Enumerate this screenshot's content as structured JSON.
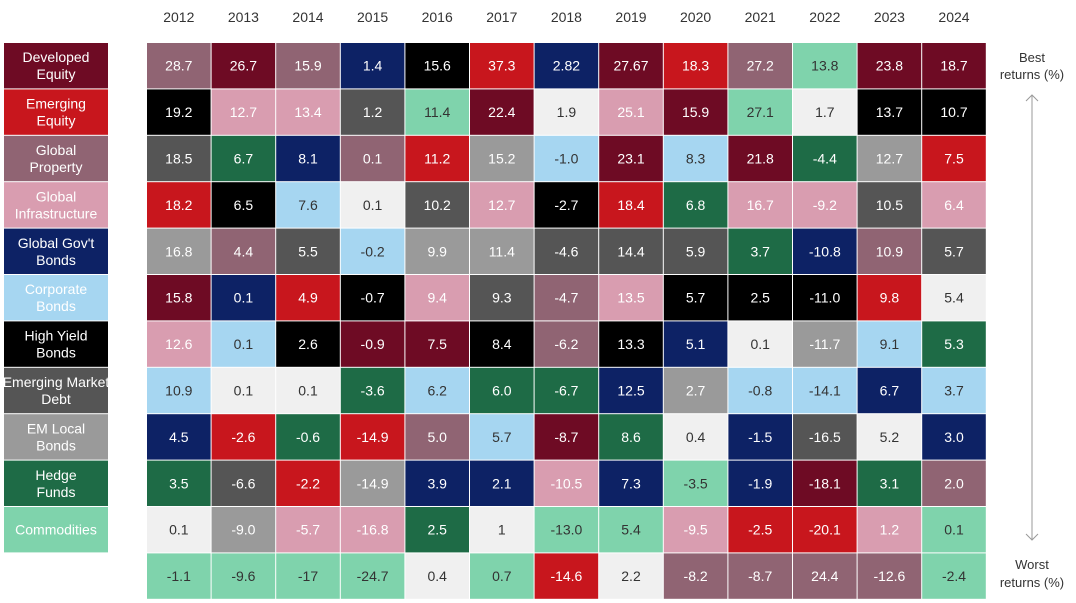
{
  "chart_data": {
    "type": "table",
    "title": "",
    "years": [
      "2012",
      "2013",
      "2014",
      "2015",
      "2016",
      "2017",
      "2018",
      "2019",
      "2020",
      "2021",
      "2022",
      "2023",
      "2024"
    ],
    "asset_classes": [
      {
        "key": "DE",
        "label": "Developed Equity",
        "color": "#6e0b24",
        "text_color": "#ffffff"
      },
      {
        "key": "EE",
        "label": "Emerging Equity",
        "color": "#c8161d",
        "text_color": "#ffffff"
      },
      {
        "key": "GP",
        "label": "Global Property",
        "color": "#906473",
        "text_color": "#ffffff"
      },
      {
        "key": "GI",
        "label": "Global Infrastructure",
        "color": "#d99db0",
        "text_color": "#ffffff"
      },
      {
        "key": "GB",
        "label": "Global Gov't Bonds",
        "color": "#0d2265",
        "text_color": "#ffffff"
      },
      {
        "key": "CB",
        "label": "Corporate Bonds",
        "color": "#a6d6f1",
        "text_color": "#333333"
      },
      {
        "key": "HY",
        "label": "High Yield Bonds",
        "color": "#000000",
        "text_color": "#ffffff"
      },
      {
        "key": "EMD",
        "label": "Emerging Market Debt",
        "color": "#555555",
        "text_color": "#ffffff"
      },
      {
        "key": "EML",
        "label": "EM Local Bonds",
        "color": "#9a9a9a",
        "text_color": "#ffffff"
      },
      {
        "key": "HF",
        "label": "Hedge Funds",
        "color": "#1e6b46",
        "text_color": "#ffffff"
      },
      {
        "key": "CO",
        "label": "Commodities",
        "color": "#7fd3ac",
        "text_color": "#333333"
      }
    ],
    "neutral_cell": {
      "color": "#f0f0f0",
      "text_color": "#333333"
    },
    "grid": [
      [
        [
          "GP",
          "28.7"
        ],
        [
          "DE",
          "26.7"
        ],
        [
          "GP",
          "15.9"
        ],
        [
          "GB",
          "1.4"
        ],
        [
          "HY",
          "15.6"
        ],
        [
          "EE",
          "37.3"
        ],
        [
          "GB",
          "2.82"
        ],
        [
          "DE",
          "27.67"
        ],
        [
          "EE",
          "18.3"
        ],
        [
          "GP",
          "27.2"
        ],
        [
          "CO",
          "13.8"
        ],
        [
          "DE",
          "23.8"
        ],
        [
          "DE",
          "18.7"
        ]
      ],
      [
        [
          "HY",
          "19.2"
        ],
        [
          "GI",
          "12.7"
        ],
        [
          "GI",
          "13.4"
        ],
        [
          "EMD",
          "1.2"
        ],
        [
          "CO",
          "11.4"
        ],
        [
          "DE",
          "22.4"
        ],
        [
          "N",
          "1.9"
        ],
        [
          "GI",
          "25.1"
        ],
        [
          "DE",
          "15.9"
        ],
        [
          "CO",
          "27.1"
        ],
        [
          "N",
          "1.7"
        ],
        [
          "HY",
          "13.7"
        ],
        [
          "HY",
          "10.7"
        ]
      ],
      [
        [
          "EMD",
          "18.5"
        ],
        [
          "HF",
          "6.7"
        ],
        [
          "GB",
          "8.1"
        ],
        [
          "GP",
          "0.1"
        ],
        [
          "EE",
          "11.2"
        ],
        [
          "EML",
          "15.2"
        ],
        [
          "CB",
          "-1.0"
        ],
        [
          "DE",
          "23.1"
        ],
        [
          "CB",
          "8.3"
        ],
        [
          "DE",
          "21.8"
        ],
        [
          "HF",
          "-4.4"
        ],
        [
          "EML",
          "12.7"
        ],
        [
          "EE",
          "7.5"
        ]
      ],
      [
        [
          "EE",
          "18.2"
        ],
        [
          "HY",
          "6.5"
        ],
        [
          "CB",
          "7.6"
        ],
        [
          "N",
          "0.1"
        ],
        [
          "EMD",
          "10.2"
        ],
        [
          "GI",
          "12.7"
        ],
        [
          "HY",
          "-2.7"
        ],
        [
          "EE",
          "18.4"
        ],
        [
          "HF",
          "6.8"
        ],
        [
          "GI",
          "16.7"
        ],
        [
          "GI",
          "-9.2"
        ],
        [
          "EMD",
          "10.5"
        ],
        [
          "GI",
          "6.4"
        ]
      ],
      [
        [
          "EML",
          "16.8"
        ],
        [
          "GP",
          "4.4"
        ],
        [
          "EMD",
          "5.5"
        ],
        [
          "CB",
          "-0.2"
        ],
        [
          "EML",
          "9.9"
        ],
        [
          "EML",
          "11.4"
        ],
        [
          "EMD",
          "-4.6"
        ],
        [
          "EMD",
          "14.4"
        ],
        [
          "EMD",
          "5.9"
        ],
        [
          "HF",
          "3.7"
        ],
        [
          "GB",
          "-10.8"
        ],
        [
          "GP",
          "10.9"
        ],
        [
          "EMD",
          "5.7"
        ]
      ],
      [
        [
          "DE",
          "15.8"
        ],
        [
          "GB",
          "0.1"
        ],
        [
          "EE",
          "4.9"
        ],
        [
          "HY",
          "-0.7"
        ],
        [
          "GI",
          "9.4"
        ],
        [
          "EMD",
          "9.3"
        ],
        [
          "GP",
          "-4.7"
        ],
        [
          "GI",
          "13.5"
        ],
        [
          "HY",
          "5.7"
        ],
        [
          "HY",
          "2.5"
        ],
        [
          "HY",
          "-11.0"
        ],
        [
          "EE",
          "9.8"
        ],
        [
          "N",
          "5.4"
        ]
      ],
      [
        [
          "GI",
          "12.6"
        ],
        [
          "CB",
          "0.1"
        ],
        [
          "HY",
          "2.6"
        ],
        [
          "DE",
          "-0.9"
        ],
        [
          "DE",
          "7.5"
        ],
        [
          "HY",
          "8.4"
        ],
        [
          "GP",
          "-6.2"
        ],
        [
          "HY",
          "13.3"
        ],
        [
          "GB",
          "5.1"
        ],
        [
          "N",
          "0.1"
        ],
        [
          "EML",
          "-11.7"
        ],
        [
          "CB",
          "9.1"
        ],
        [
          "HF",
          "5.3"
        ]
      ],
      [
        [
          "CB",
          "10.9"
        ],
        [
          "N",
          "0.1"
        ],
        [
          "N",
          "0.1"
        ],
        [
          "HF",
          "-3.6"
        ],
        [
          "CB",
          "6.2"
        ],
        [
          "HF",
          "6.0"
        ],
        [
          "HF",
          "-6.7"
        ],
        [
          "GB",
          "12.5"
        ],
        [
          "EML",
          "2.7"
        ],
        [
          "CB",
          "-0.8"
        ],
        [
          "CB",
          "-14.1"
        ],
        [
          "GB",
          "6.7"
        ],
        [
          "CB",
          "3.7"
        ]
      ],
      [
        [
          "GB",
          "4.5"
        ],
        [
          "EE",
          "-2.6"
        ],
        [
          "HF",
          "-0.6"
        ],
        [
          "EE",
          "-14.9"
        ],
        [
          "GP",
          "5.0"
        ],
        [
          "CB",
          "5.7"
        ],
        [
          "DE",
          "-8.7"
        ],
        [
          "HF",
          "8.6"
        ],
        [
          "N",
          "0.4"
        ],
        [
          "GB",
          "-1.5"
        ],
        [
          "EMD",
          "-16.5"
        ],
        [
          "N",
          "5.2"
        ],
        [
          "GB",
          "3.0"
        ]
      ],
      [
        [
          "HF",
          "3.5"
        ],
        [
          "EMD",
          "-6.6"
        ],
        [
          "EE",
          "-2.2"
        ],
        [
          "EML",
          "-14.9"
        ],
        [
          "GB",
          "3.9"
        ],
        [
          "GB",
          "2.1"
        ],
        [
          "GI",
          "-10.5"
        ],
        [
          "GB",
          "7.3"
        ],
        [
          "CO",
          "-3.5"
        ],
        [
          "GB",
          "-1.9"
        ],
        [
          "DE",
          "-18.1"
        ],
        [
          "HF",
          "3.1"
        ],
        [
          "GP",
          "2.0"
        ]
      ],
      [
        [
          "N",
          "0.1"
        ],
        [
          "EML",
          "-9.0"
        ],
        [
          "GI",
          "-5.7"
        ],
        [
          "GI",
          "-16.8"
        ],
        [
          "HF",
          "2.5"
        ],
        [
          "N",
          "1"
        ],
        [
          "CO",
          "-13.0"
        ],
        [
          "CO",
          "5.4"
        ],
        [
          "GI",
          "-9.5"
        ],
        [
          "EE",
          "-2.5"
        ],
        [
          "EE",
          "-20.1"
        ],
        [
          "GI",
          "1.2"
        ],
        [
          "CO",
          "0.1"
        ]
      ],
      [
        [
          "CO",
          "-1.1"
        ],
        [
          "CO",
          "-9.6"
        ],
        [
          "CO",
          "-17"
        ],
        [
          "CO",
          "-24.7"
        ],
        [
          "N",
          "0.4"
        ],
        [
          "CO",
          "0.7"
        ],
        [
          "EE",
          "-14.6"
        ],
        [
          "N",
          "2.2"
        ],
        [
          "GP",
          "-8.2"
        ],
        [
          "GP",
          "-8.7"
        ],
        [
          "GP",
          "24.4"
        ],
        [
          "GP",
          "-12.6"
        ],
        [
          "CO",
          "-2.4"
        ]
      ]
    ],
    "side_labels": {
      "best": [
        "Best",
        "returns (%)"
      ],
      "worst": [
        "Worst",
        "returns (%)"
      ]
    },
    "arrow_color": "#9a9a9a"
  }
}
